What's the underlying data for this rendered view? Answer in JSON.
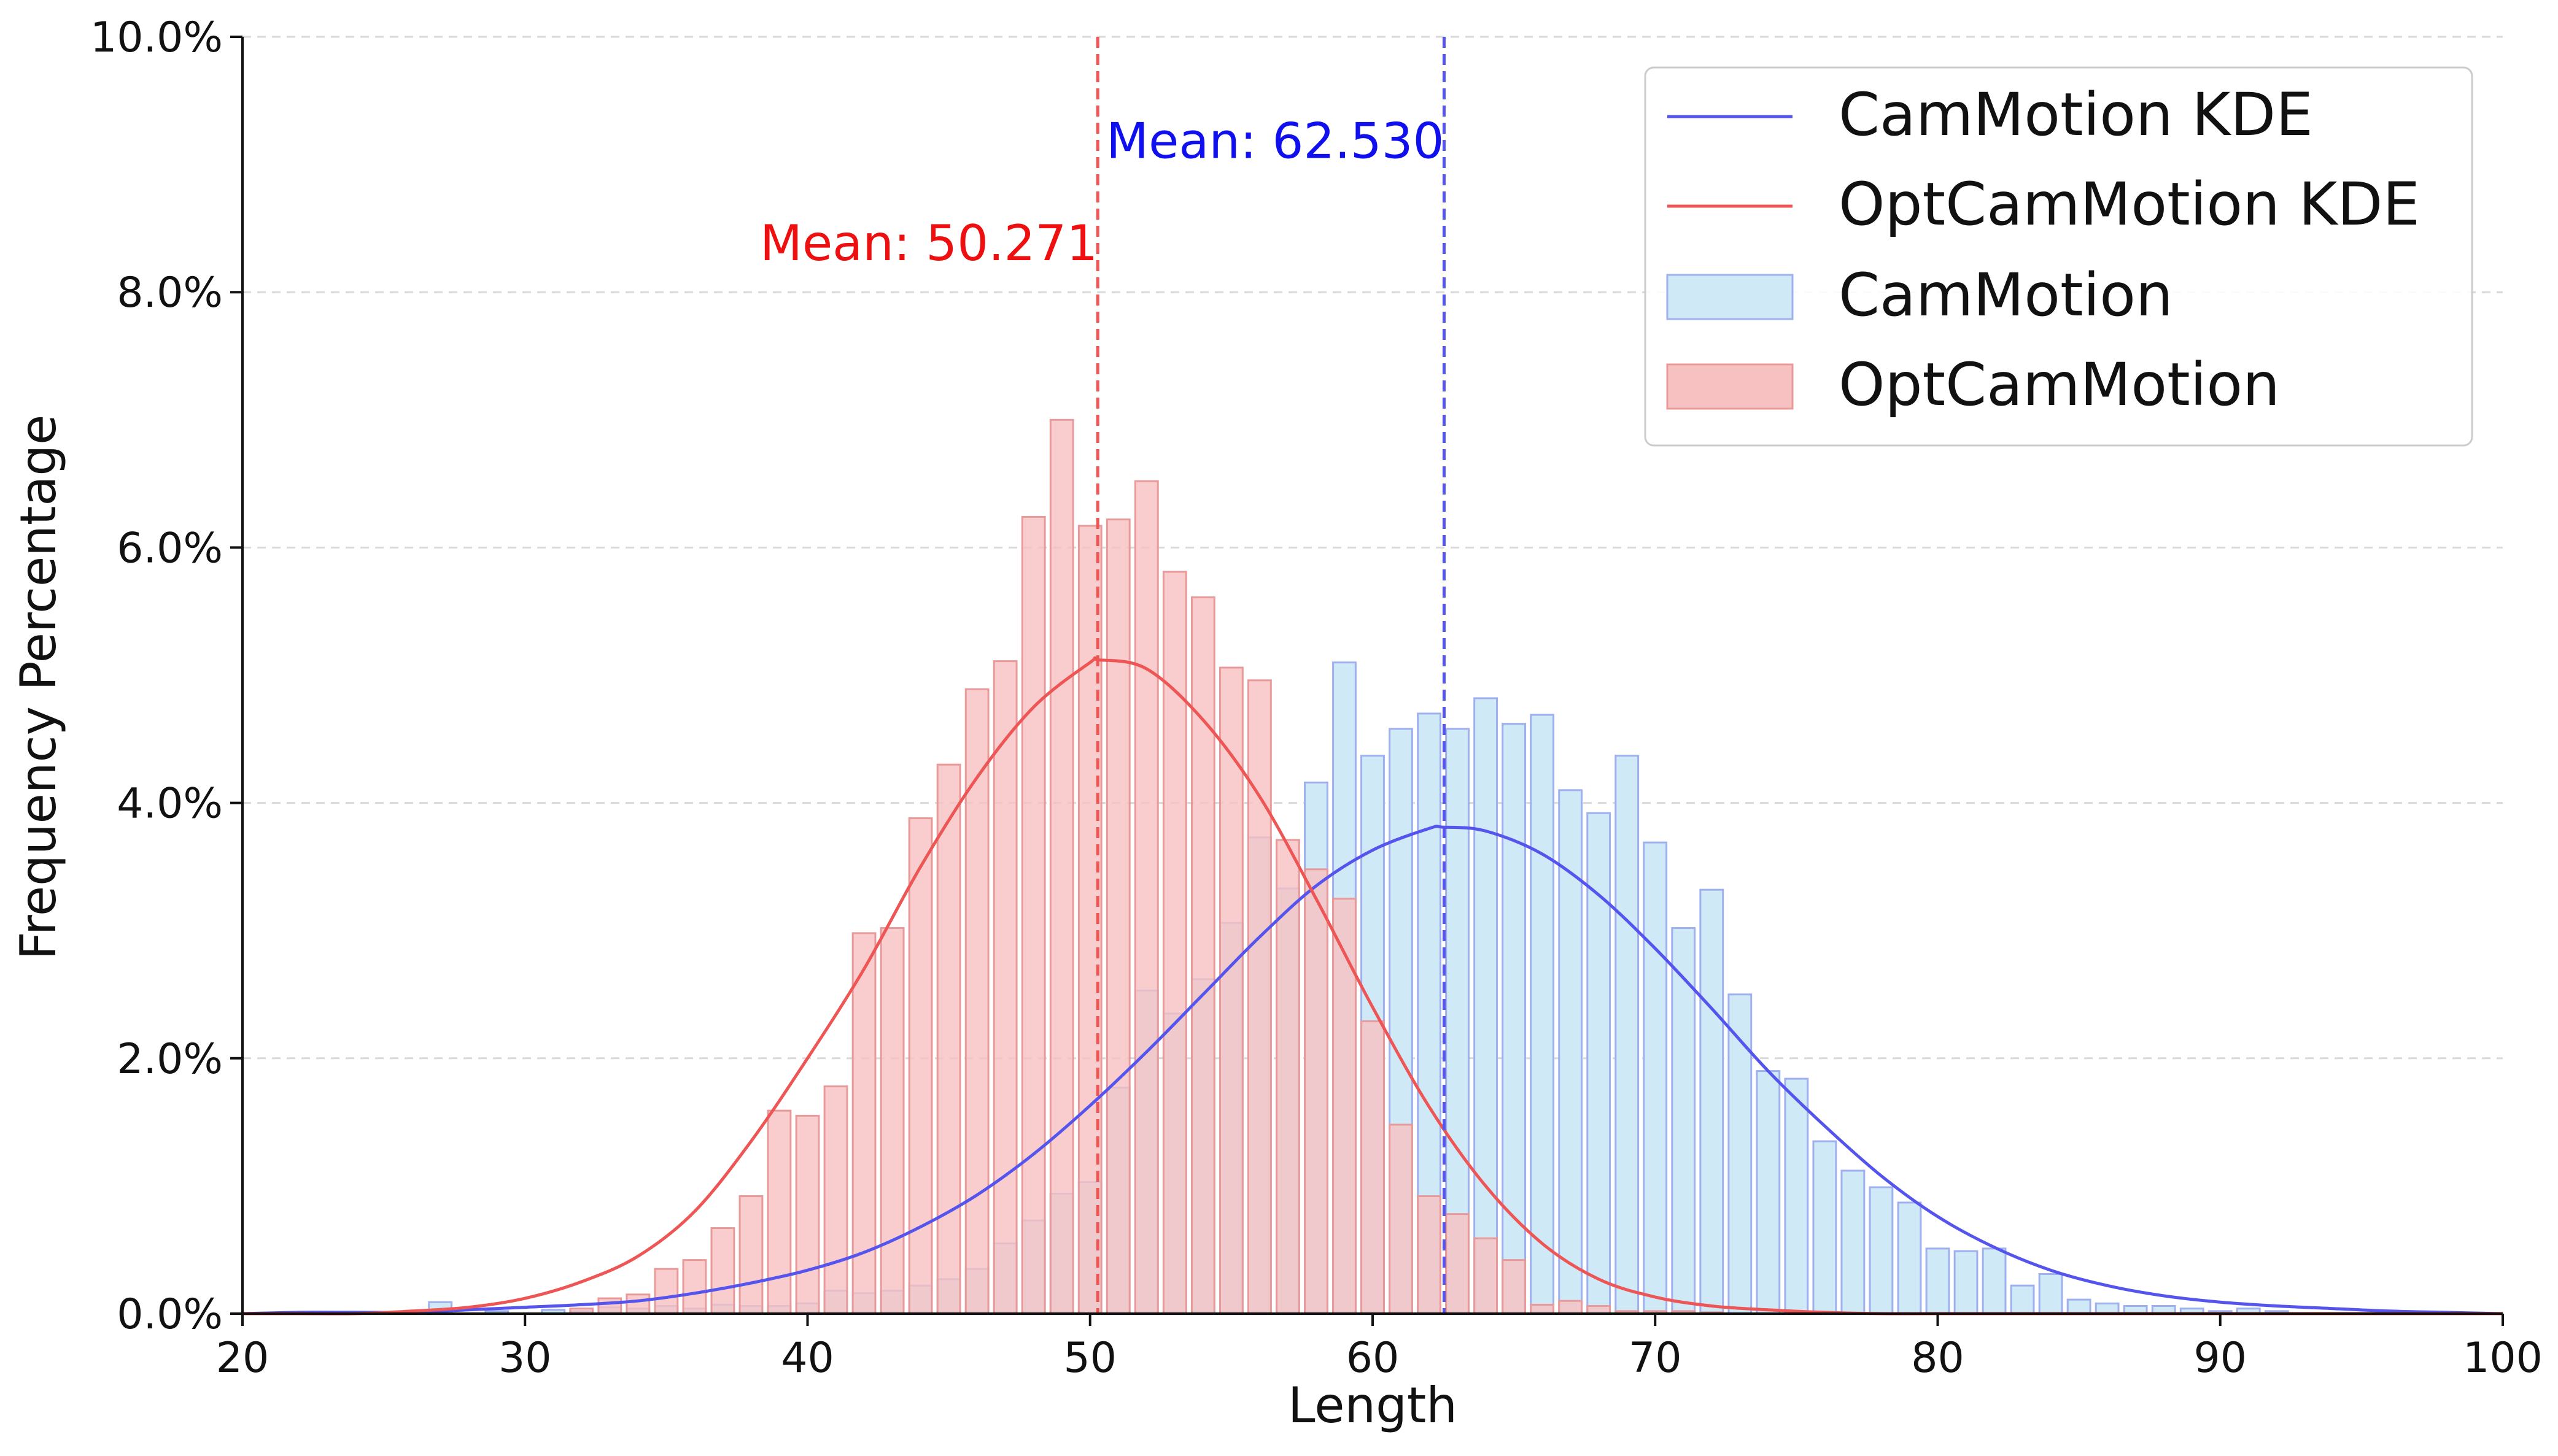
{
  "chart_data": {
    "type": "bar",
    "xlabel": "Length",
    "ylabel": "Frequency Percentage",
    "xlim": [
      20,
      100
    ],
    "ylim": [
      0,
      10
    ],
    "x_ticks": [
      20,
      30,
      40,
      50,
      60,
      70,
      80,
      90,
      100
    ],
    "x_tick_labels": [
      "20",
      "30",
      "40",
      "50",
      "60",
      "70",
      "80",
      "90",
      "100"
    ],
    "y_ticks": [
      0,
      2,
      4,
      6,
      8,
      10
    ],
    "y_tick_labels": [
      "0.0%",
      "2.0%",
      "4.0%",
      "6.0%",
      "8.0%",
      "10.0%"
    ],
    "grid": "horizontal dashed",
    "legend": {
      "position": "top-right",
      "entries": [
        "CamMotion KDE",
        "OptCamMotion KDE",
        "CamMotion",
        "OptCamMotion"
      ]
    },
    "colors": {
      "cam_line": "#5555ee",
      "cam_bar_fill": "#cfe9f7",
      "cam_bar_edge": "#9fb0ee",
      "opt_line": "#ee5555",
      "opt_bar_fill": "#f7c1c1",
      "opt_bar_edge": "#e89a9a",
      "cam_mean_text": "#1010ee",
      "opt_mean_text": "#ee1010"
    },
    "series": [
      {
        "name": "CamMotion",
        "kind": "histogram",
        "bar_width": 0.8,
        "x": [
          27,
          29,
          31,
          32,
          33,
          34,
          35,
          36,
          37,
          38,
          39,
          40,
          41,
          42,
          43,
          44,
          45,
          46,
          47,
          48,
          49,
          50,
          51,
          52,
          53,
          54,
          55,
          56,
          57,
          58,
          59,
          60,
          61,
          62,
          63,
          64,
          65,
          66,
          67,
          68,
          69,
          70,
          71,
          72,
          73,
          74,
          75,
          76,
          77,
          78,
          79,
          80,
          81,
          82,
          83,
          84,
          85,
          86,
          87,
          88,
          89,
          90,
          91,
          92
        ],
        "values": [
          0.09,
          0.02,
          0.03,
          0.02,
          0.05,
          0.04,
          0.06,
          0.04,
          0.07,
          0.06,
          0.06,
          0.08,
          0.18,
          0.16,
          0.18,
          0.22,
          0.27,
          0.35,
          0.55,
          0.73,
          0.94,
          1.03,
          1.77,
          2.53,
          2.35,
          2.62,
          3.06,
          3.73,
          3.33,
          4.16,
          5.1,
          4.37,
          4.58,
          4.7,
          4.58,
          4.82,
          4.62,
          4.69,
          4.1,
          3.92,
          4.37,
          3.69,
          3.02,
          3.32,
          2.5,
          1.9,
          1.84,
          1.35,
          1.12,
          0.99,
          0.87,
          0.51,
          0.49,
          0.51,
          0.22,
          0.31,
          0.11,
          0.08,
          0.06,
          0.06,
          0.04,
          0.02,
          0.04,
          0.02
        ]
      },
      {
        "name": "OptCamMotion",
        "kind": "histogram",
        "bar_width": 0.8,
        "x": [
          32,
          33,
          34,
          35,
          36,
          37,
          38,
          39,
          40,
          41,
          42,
          43,
          44,
          45,
          46,
          47,
          48,
          49,
          50,
          51,
          52,
          53,
          54,
          55,
          56,
          57,
          58,
          59,
          60,
          61,
          62,
          63,
          64,
          65,
          66,
          67,
          68,
          69,
          70,
          71,
          72
        ],
        "values": [
          0.04,
          0.12,
          0.15,
          0.35,
          0.42,
          0.67,
          0.92,
          1.59,
          1.55,
          1.78,
          2.98,
          3.02,
          3.88,
          4.3,
          4.89,
          5.11,
          6.24,
          7.0,
          6.17,
          6.22,
          6.52,
          5.81,
          5.61,
          5.06,
          4.96,
          3.71,
          3.48,
          3.25,
          2.29,
          1.48,
          0.92,
          0.78,
          0.59,
          0.42,
          0.07,
          0.1,
          0.06,
          0.02,
          0.02,
          0.02,
          0.01
        ]
      },
      {
        "name": "CamMotion KDE",
        "kind": "line",
        "x": [
          20,
          22,
          24,
          26,
          28,
          30,
          32,
          34,
          36,
          38,
          40,
          42,
          44,
          46,
          48,
          50,
          52,
          54,
          56,
          58,
          60,
          62,
          62.5,
          64,
          66,
          68,
          70,
          72,
          74,
          76,
          78,
          80,
          82,
          84,
          86,
          88,
          90,
          92,
          94,
          96,
          98,
          100
        ],
        "values": [
          0.0,
          0.01,
          0.01,
          0.01,
          0.03,
          0.05,
          0.07,
          0.1,
          0.16,
          0.24,
          0.34,
          0.48,
          0.68,
          0.93,
          1.25,
          1.63,
          2.05,
          2.5,
          2.95,
          3.35,
          3.63,
          3.8,
          3.81,
          3.78,
          3.6,
          3.28,
          2.86,
          2.39,
          1.9,
          1.47,
          1.08,
          0.76,
          0.52,
          0.34,
          0.22,
          0.14,
          0.09,
          0.06,
          0.04,
          0.02,
          0.01,
          0.0
        ]
      },
      {
        "name": "OptCamMotion KDE",
        "kind": "line",
        "x": [
          20,
          22,
          24,
          26,
          28,
          30,
          32,
          34,
          36,
          38,
          40,
          42,
          44,
          46,
          48,
          50,
          50.3,
          52,
          54,
          56,
          58,
          60,
          62,
          64,
          66,
          68,
          70,
          72,
          74,
          76,
          78,
          80,
          85,
          90,
          95,
          100
        ],
        "values": [
          0.0,
          0.0,
          0.0,
          0.02,
          0.05,
          0.12,
          0.25,
          0.45,
          0.8,
          1.35,
          2.0,
          2.7,
          3.5,
          4.2,
          4.75,
          5.1,
          5.12,
          5.05,
          4.65,
          4.05,
          3.25,
          2.4,
          1.62,
          1.0,
          0.55,
          0.27,
          0.13,
          0.06,
          0.03,
          0.01,
          0.0,
          0.0,
          0.0,
          0.0,
          0.0,
          0.0
        ]
      }
    ],
    "annotations": [
      {
        "id": "cam-mean",
        "text": "Mean: 62.530",
        "x": 62.53,
        "y": 9.05,
        "anchor": "end",
        "color_key": "cam_mean_text"
      },
      {
        "id": "opt-mean",
        "text": "Mean: 50.271",
        "x": 50.271,
        "y": 8.25,
        "anchor": "end",
        "color_key": "opt_mean_text"
      }
    ],
    "mean_lines": [
      {
        "name": "CamMotion mean",
        "x": 62.53,
        "color_key": "cam_line"
      },
      {
        "name": "OptCamMotion mean",
        "x": 50.271,
        "color_key": "opt_line"
      }
    ]
  }
}
